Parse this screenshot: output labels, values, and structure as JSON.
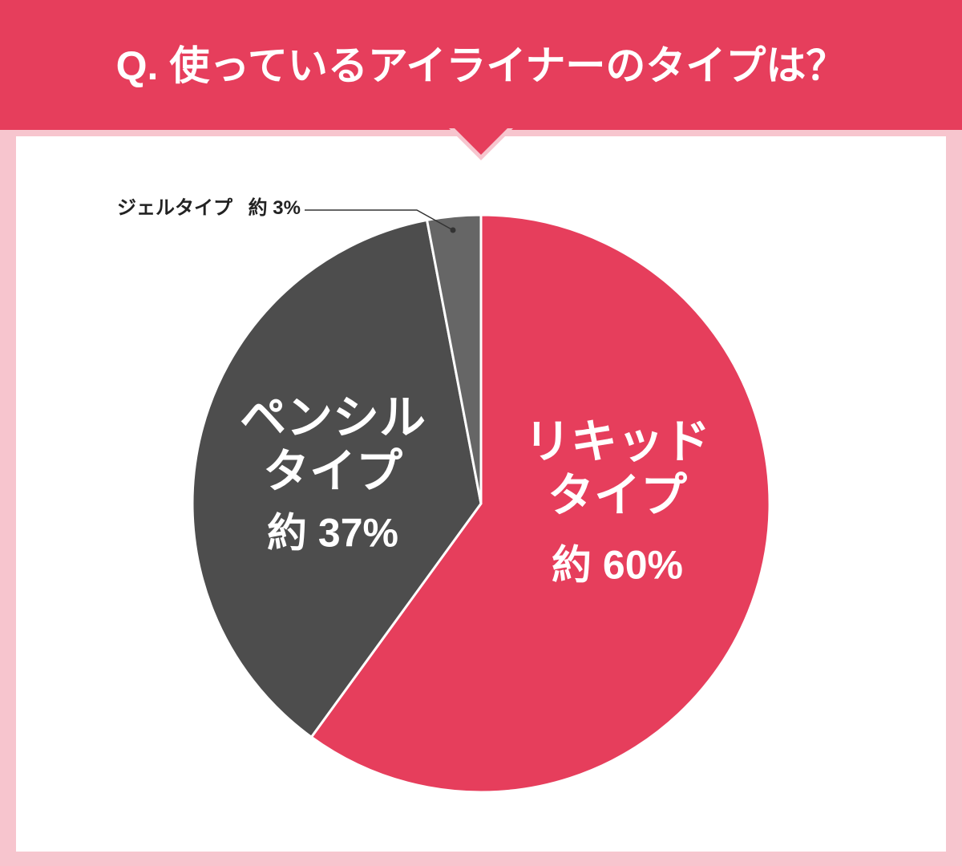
{
  "chart_data": {
    "type": "pie",
    "title": "Q. 使っているアイライナーのタイプは？",
    "categories": [
      "リキッドタイプ",
      "ペンシルタイプ",
      "ジェルタイプ"
    ],
    "values": [
      60,
      37,
      3
    ],
    "value_labels": [
      "約 60%",
      "約 37%",
      "約 3%"
    ],
    "colors": [
      "#e63e5c",
      "#4d4d4d",
      "#666666"
    ]
  }
}
